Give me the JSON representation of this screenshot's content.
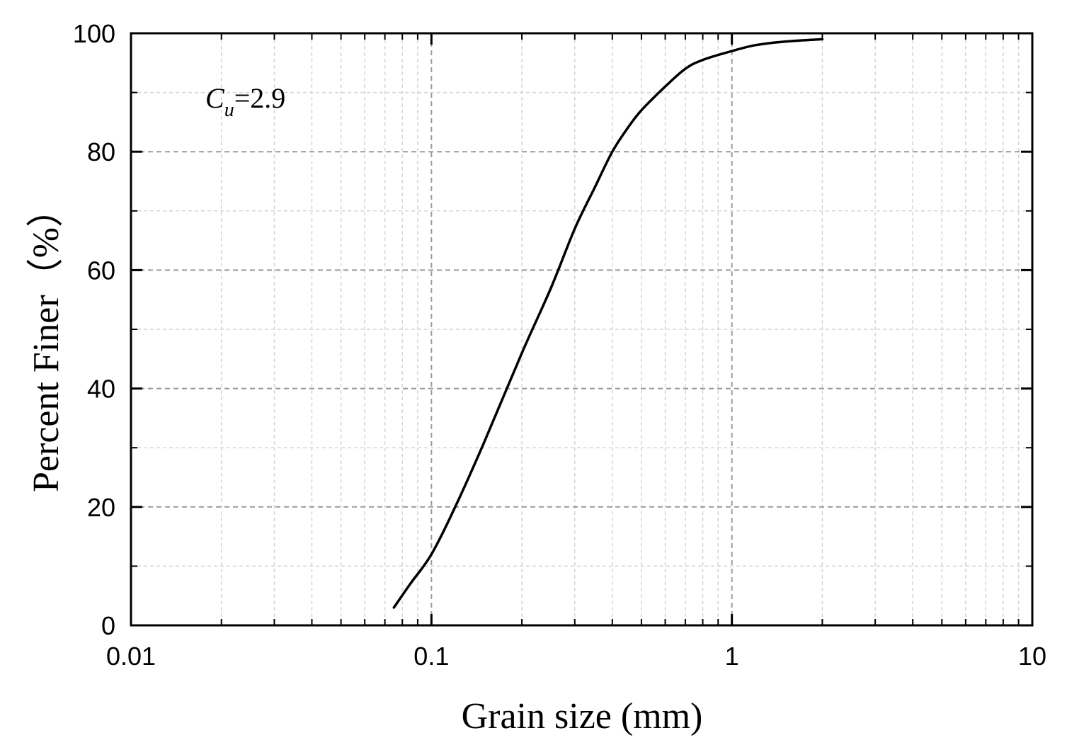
{
  "chart_data": {
    "type": "line",
    "xlabel": "Grain size (mm)",
    "ylabel": "Percent Finer（%）",
    "x_scale": "log",
    "xlim": [
      0.01,
      10
    ],
    "ylim": [
      0,
      100
    ],
    "x_ticks": [
      "0.01",
      "0.1",
      "1",
      "10"
    ],
    "y_ticks": [
      "0",
      "20",
      "40",
      "60",
      "80",
      "100"
    ],
    "grid": true,
    "annotation": {
      "symbol": "C",
      "subscript": "u",
      "value": "=2.9"
    },
    "series": [
      {
        "color": "#000000",
        "x": [
          0.075,
          0.085,
          0.1,
          0.12,
          0.15,
          0.2,
          0.25,
          0.3,
          0.35,
          0.4,
          0.45,
          0.5,
          0.6,
          0.7,
          0.8,
          1.0,
          1.2,
          1.5,
          2.0
        ],
        "y": [
          3,
          7,
          12,
          20,
          31,
          46,
          57,
          67,
          74,
          80,
          84,
          87,
          91,
          94,
          95.5,
          97,
          98,
          98.6,
          99
        ]
      }
    ]
  }
}
